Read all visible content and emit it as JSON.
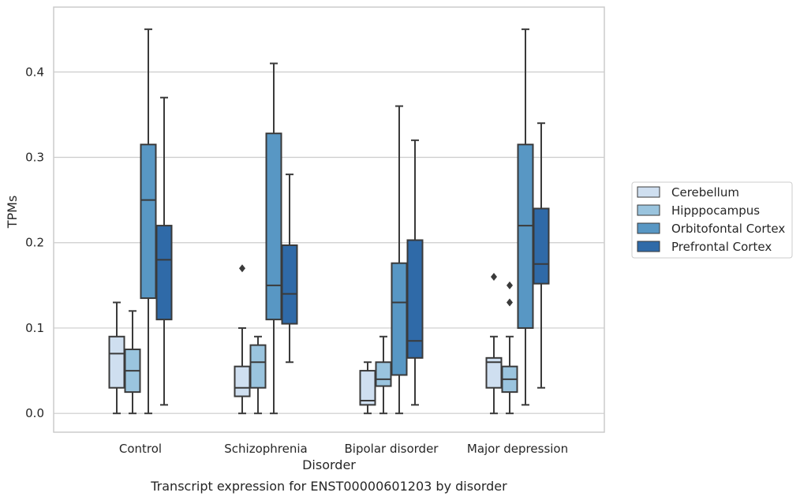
{
  "chart_data": {
    "type": "box",
    "title": "",
    "caption": "Transcript expression for ENST00000601203 by disorder",
    "xlabel": "Disorder",
    "ylabel": "TPMs",
    "ylim": [
      -0.022,
      0.476
    ],
    "yticks": [
      "0.0",
      "0.1",
      "0.2",
      "0.3",
      "0.4"
    ],
    "ytick_values": [
      0,
      0.1,
      0.2,
      0.3,
      0.4
    ],
    "grid": true,
    "legend_position": "right",
    "categories": [
      "Control",
      "Schizophrenia",
      "Bipolar disorder",
      "Major depression"
    ],
    "series": [
      {
        "name": "Cerebellum",
        "color": "#cfdff0",
        "boxes": [
          {
            "whislo": 0.0,
            "q1": 0.03,
            "med": 0.07,
            "q3": 0.09,
            "whishi": 0.13,
            "fliers": []
          },
          {
            "whislo": 0.0,
            "q1": 0.02,
            "med": 0.03,
            "q3": 0.055,
            "whishi": 0.1,
            "fliers": [
              0.17
            ]
          },
          {
            "whislo": 0.0,
            "q1": 0.01,
            "med": 0.015,
            "q3": 0.05,
            "whishi": 0.06,
            "fliers": []
          },
          {
            "whislo": 0.0,
            "q1": 0.03,
            "med": 0.06,
            "q3": 0.065,
            "whishi": 0.09,
            "fliers": [
              0.16
            ]
          }
        ]
      },
      {
        "name": "Hipppocampus",
        "color": "#9ac4de",
        "boxes": [
          {
            "whislo": 0.0,
            "q1": 0.025,
            "med": 0.05,
            "q3": 0.075,
            "whishi": 0.12,
            "fliers": []
          },
          {
            "whislo": 0.0,
            "q1": 0.03,
            "med": 0.06,
            "q3": 0.08,
            "whishi": 0.09,
            "fliers": []
          },
          {
            "whislo": 0.0,
            "q1": 0.032,
            "med": 0.04,
            "q3": 0.06,
            "whishi": 0.09,
            "fliers": []
          },
          {
            "whislo": 0.0,
            "q1": 0.025,
            "med": 0.04,
            "q3": 0.055,
            "whishi": 0.09,
            "fliers": [
              0.15,
              0.13
            ]
          }
        ]
      },
      {
        "name": "Orbitofontal Cortex",
        "color": "#5897c4",
        "boxes": [
          {
            "whislo": 0.0,
            "q1": 0.135,
            "med": 0.25,
            "q3": 0.315,
            "whishi": 0.45,
            "fliers": []
          },
          {
            "whislo": 0.0,
            "q1": 0.11,
            "med": 0.15,
            "q3": 0.328,
            "whishi": 0.41,
            "fliers": []
          },
          {
            "whislo": 0.0,
            "q1": 0.045,
            "med": 0.13,
            "q3": 0.176,
            "whishi": 0.36,
            "fliers": []
          },
          {
            "whislo": 0.01,
            "q1": 0.1,
            "med": 0.22,
            "q3": 0.315,
            "whishi": 0.45,
            "fliers": []
          }
        ]
      },
      {
        "name": "Prefrontal Cortex",
        "color": "#2f6aa8",
        "boxes": [
          {
            "whislo": 0.01,
            "q1": 0.11,
            "med": 0.18,
            "q3": 0.22,
            "whishi": 0.37,
            "fliers": []
          },
          {
            "whislo": 0.06,
            "q1": 0.105,
            "med": 0.14,
            "q3": 0.197,
            "whishi": 0.28,
            "fliers": []
          },
          {
            "whislo": 0.01,
            "q1": 0.065,
            "med": 0.085,
            "q3": 0.203,
            "whishi": 0.32,
            "fliers": []
          },
          {
            "whislo": 0.03,
            "q1": 0.152,
            "med": 0.175,
            "q3": 0.24,
            "whishi": 0.34,
            "fliers": []
          }
        ]
      }
    ],
    "colors": {
      "grid": "#cccccc",
      "frame": "#cccccc",
      "box_edge": "#3a3a3a"
    }
  }
}
